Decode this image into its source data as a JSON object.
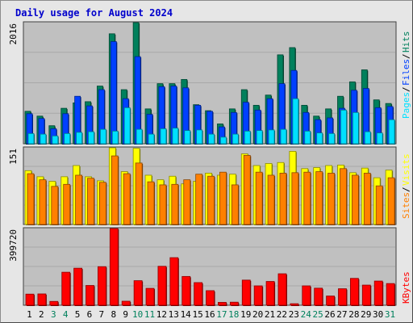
{
  "title": "Daily usage for August 2024",
  "colors": {
    "frame": "#e6e6e6",
    "plot_bg": "#c0c0c0",
    "gridline": "#a8a8a8",
    "hits": "#00805c",
    "files": "#0040ff",
    "pages": "#00e0ff",
    "visits": "#ffff00",
    "sites": "#ff8000",
    "kbytes": "#ff0000",
    "weekend_day": "#00805c",
    "weekday": "#000000",
    "title": "#0000cc"
  },
  "chart_data": [
    {
      "type": "bar",
      "panel": "hits-files-pages",
      "title": "Daily usage for August 2024",
      "axis_max_label": "2016",
      "ylim": [
        0,
        2016
      ],
      "categories": [
        "1",
        "2",
        "3",
        "4",
        "5",
        "6",
        "7",
        "8",
        "9",
        "10",
        "11",
        "12",
        "13",
        "14",
        "15",
        "16",
        "17",
        "18",
        "19",
        "20",
        "21",
        "22",
        "23",
        "24",
        "25",
        "26",
        "27",
        "28",
        "29",
        "30",
        "31"
      ],
      "weekend_days": [
        3,
        4,
        10,
        11,
        17,
        18,
        24,
        25,
        31
      ],
      "legend": [
        "Pages",
        "Files",
        "Hits"
      ],
      "series": [
        {
          "name": "Hits",
          "values": [
            540,
            460,
            300,
            590,
            680,
            700,
            960,
            1830,
            900,
            2016,
            580,
            1000,
            1000,
            1070,
            650,
            550,
            330,
            580,
            900,
            640,
            810,
            1480,
            1600,
            640,
            460,
            580,
            790,
            1030,
            1230,
            730,
            670
          ]
        },
        {
          "name": "Files",
          "values": [
            500,
            420,
            250,
            500,
            790,
            630,
            900,
            1700,
            750,
            1450,
            490,
            950,
            960,
            930,
            640,
            540,
            280,
            520,
            690,
            560,
            750,
            1000,
            1220,
            520,
            400,
            430,
            590,
            890,
            920,
            600,
            620
          ]
        },
        {
          "name": "Pages",
          "values": [
            170,
            160,
            130,
            170,
            190,
            200,
            240,
            210,
            600,
            240,
            160,
            250,
            260,
            220,
            230,
            160,
            110,
            160,
            210,
            220,
            230,
            240,
            750,
            210,
            180,
            170,
            560,
            520,
            200,
            180,
            400
          ]
        }
      ]
    },
    {
      "type": "bar",
      "panel": "visits-sites",
      "axis_max_label": "151",
      "ylim": [
        0,
        151
      ],
      "categories": [
        "1",
        "2",
        "3",
        "4",
        "5",
        "6",
        "7",
        "8",
        "9",
        "10",
        "11",
        "12",
        "13",
        "14",
        "15",
        "16",
        "17",
        "18",
        "19",
        "20",
        "21",
        "22",
        "23",
        "24",
        "25",
        "26",
        "27",
        "28",
        "29",
        "30",
        "31"
      ],
      "legend": [
        "Sites",
        "Visits"
      ],
      "series": [
        {
          "name": "Visits",
          "values": [
            106,
            94,
            85,
            94,
            116,
            94,
            86,
            151,
            104,
            150,
            97,
            88,
            95,
            80,
            85,
            101,
            97,
            99,
            139,
            116,
            120,
            122,
            144,
            110,
            112,
            116,
            117,
            102,
            111,
            92,
            107
          ]
        },
        {
          "name": "Sites",
          "values": [
            100,
            88,
            75,
            79,
            97,
            91,
            83,
            135,
            100,
            121,
            84,
            78,
            79,
            88,
            99,
            95,
            103,
            78,
            136,
            103,
            97,
            101,
            102,
            103,
            104,
            101,
            110,
            97,
            101,
            76,
            92
          ]
        }
      ]
    },
    {
      "type": "bar",
      "panel": "kbytes",
      "axis_max_label": "399720",
      "ylim": [
        0,
        399720
      ],
      "categories": [
        "1",
        "2",
        "3",
        "4",
        "5",
        "6",
        "7",
        "8",
        "9",
        "10",
        "11",
        "12",
        "13",
        "14",
        "15",
        "16",
        "17",
        "18",
        "19",
        "20",
        "21",
        "22",
        "23",
        "24",
        "25",
        "26",
        "27",
        "28",
        "29",
        "30",
        "31"
      ],
      "legend": [
        "KBytes"
      ],
      "series": [
        {
          "name": "KBytes",
          "values": [
            58000,
            59000,
            20000,
            172000,
            193000,
            103000,
            201000,
            399720,
            21000,
            128000,
            88000,
            203000,
            248000,
            150000,
            118000,
            76000,
            15000,
            16000,
            131000,
            101000,
            124000,
            164000,
            8000,
            101000,
            89000,
            48000,
            86000,
            140000,
            105000,
            126000,
            113000
          ]
        }
      ]
    }
  ]
}
